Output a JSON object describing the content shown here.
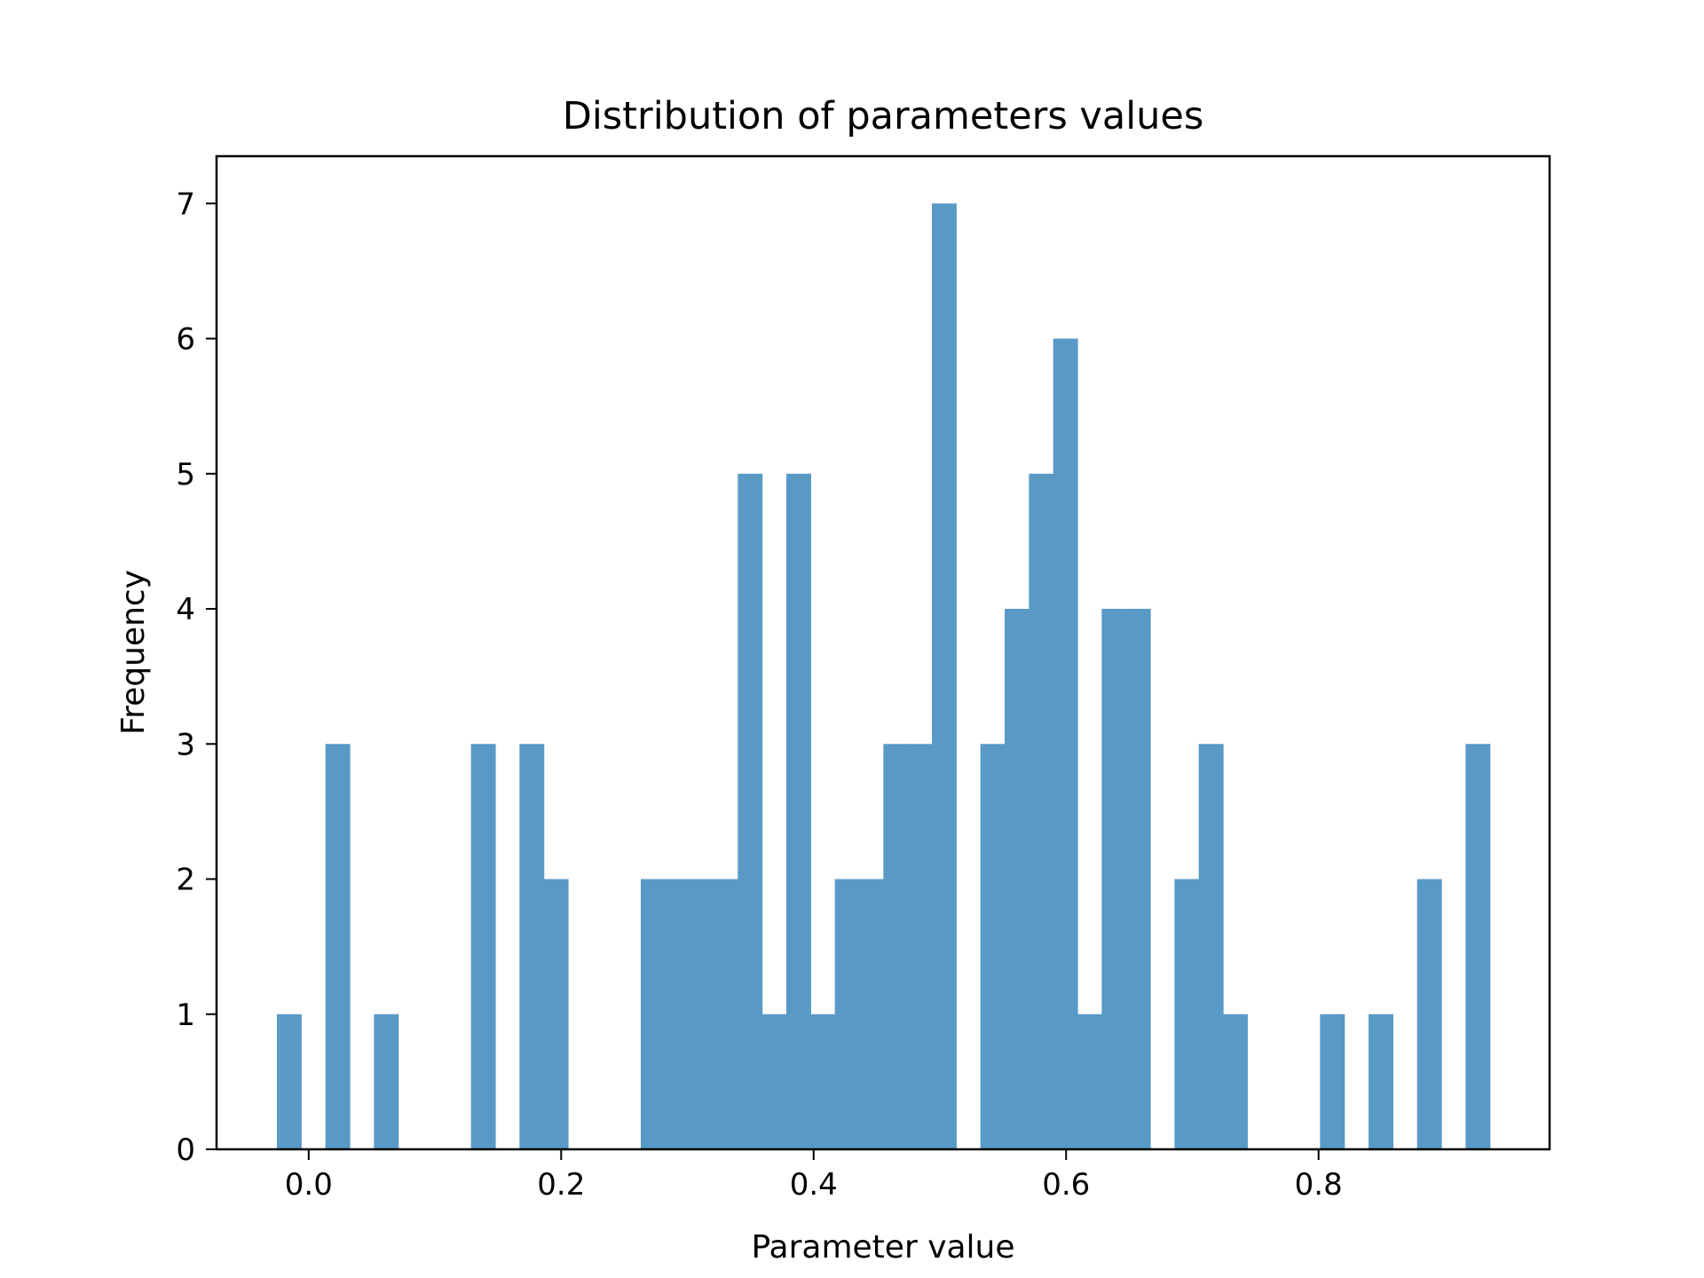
{
  "chart_data": {
    "type": "histogram",
    "title": "Distribution of parameters values",
    "xlabel": "Parameter value",
    "ylabel": "Frequency",
    "xlim": [
      -0.073,
      0.983
    ],
    "ylim": [
      0,
      7.35
    ],
    "bin_start": -0.0252,
    "bin_width": 0.019218,
    "counts": [
      1,
      0,
      3,
      0,
      1,
      0,
      0,
      0,
      3,
      0,
      3,
      2,
      0,
      0,
      0,
      2,
      2,
      2,
      2,
      5,
      1,
      5,
      1,
      2,
      2,
      3,
      3,
      7,
      0,
      3,
      4,
      5,
      6,
      1,
      4,
      4,
      0,
      2,
      3,
      1,
      0,
      0,
      0,
      1,
      0,
      1,
      0,
      2,
      0,
      3
    ],
    "xticks": [
      {
        "value": 0.0,
        "label": "0.0"
      },
      {
        "value": 0.2,
        "label": "0.2"
      },
      {
        "value": 0.4,
        "label": "0.4"
      },
      {
        "value": 0.6,
        "label": "0.6"
      },
      {
        "value": 0.8,
        "label": "0.8"
      }
    ],
    "yticks": [
      {
        "value": 0,
        "label": "0"
      },
      {
        "value": 1,
        "label": "1"
      },
      {
        "value": 2,
        "label": "2"
      },
      {
        "value": 3,
        "label": "3"
      },
      {
        "value": 4,
        "label": "4"
      },
      {
        "value": 5,
        "label": "5"
      },
      {
        "value": 6,
        "label": "6"
      },
      {
        "value": 7,
        "label": "7"
      }
    ],
    "bar_color": "#5899c6",
    "grid": false,
    "legend": "none"
  }
}
